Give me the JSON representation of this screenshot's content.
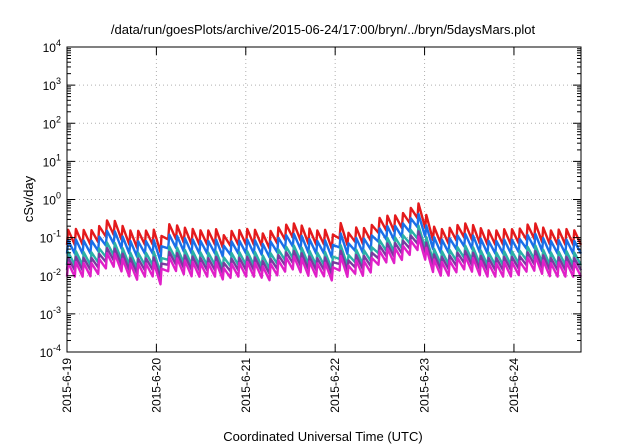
{
  "chart_data": {
    "type": "line",
    "title": "/data/run/goesPlots/archive/2015-06-24/17:00/bryn/../bryn/5daysMars.plot",
    "xlabel": "Coordinated Universal Time (UTC)",
    "ylabel": "cSv/day",
    "yscale": "log",
    "ylim": [
      0.0001,
      10000
    ],
    "xlim": [
      0,
      5.75
    ],
    "x_origin_date": "2015-6-19",
    "x_ticks": [
      {
        "value": 0,
        "label": "2015-6-19"
      },
      {
        "value": 1,
        "label": "2015-6-20"
      },
      {
        "value": 2,
        "label": "2015-6-21"
      },
      {
        "value": 3,
        "label": "2015-6-22"
      },
      {
        "value": 4,
        "label": "2015-6-23"
      },
      {
        "value": 5,
        "label": "2015-6-24"
      }
    ],
    "y_ticks": [
      {
        "value": 0.0001,
        "base": "10",
        "exp": "-4"
      },
      {
        "value": 0.001,
        "base": "10",
        "exp": "-3"
      },
      {
        "value": 0.01,
        "base": "10",
        "exp": "-2"
      },
      {
        "value": 0.1,
        "base": "10",
        "exp": "-1"
      },
      {
        "value": 1,
        "base": "10",
        "exp": "0"
      },
      {
        "value": 10,
        "base": "10",
        "exp": "1"
      },
      {
        "value": 100,
        "base": "10",
        "exp": "2"
      },
      {
        "value": 1000,
        "base": "10",
        "exp": "3"
      },
      {
        "value": 10000,
        "base": "10",
        "exp": "4"
      }
    ],
    "grid": true,
    "legend": "none",
    "series": [
      {
        "color": "#e41a1c",
        "base": 0.16,
        "min": 0.065
      },
      {
        "color": "#1a6fe8",
        "base": 0.085,
        "min": 0.038
      },
      {
        "color": "#2ab0a8",
        "base": 0.042,
        "min": 0.019
      },
      {
        "color": "#7a3aa0",
        "base": 0.03,
        "min": 0.014
      },
      {
        "color": "#e020c8",
        "base": 0.022,
        "min": 0.0095
      }
    ],
    "peaks": [
      {
        "x": 0.5,
        "factor": 0.85
      },
      {
        "x": 1.18,
        "factor": 0.45
      },
      {
        "x": 2.52,
        "factor": 0.55
      },
      {
        "x": 3.1,
        "factor": 0.55
      },
      {
        "x": 3.55,
        "factor": 1.4
      },
      {
        "x": 4.0,
        "factor": 0.6
      },
      {
        "x": 4.45,
        "factor": 0.55
      },
      {
        "x": 5.2,
        "factor": 0.45
      }
    ],
    "episode": {
      "start": 3.6,
      "peak": 3.92,
      "end": 4.05,
      "factor": 3.6
    },
    "dips": [
      {
        "x": 0.75,
        "factor": 0.55
      },
      {
        "x": 1.05,
        "factor": 0.55
      },
      {
        "x": 1.78,
        "factor": 0.5
      },
      {
        "x": 2.23,
        "factor": 0.45
      },
      {
        "x": 2.98,
        "factor": 0.6
      },
      {
        "x": 3.15,
        "factor": 0.6
      }
    ],
    "cycles": 66
  }
}
